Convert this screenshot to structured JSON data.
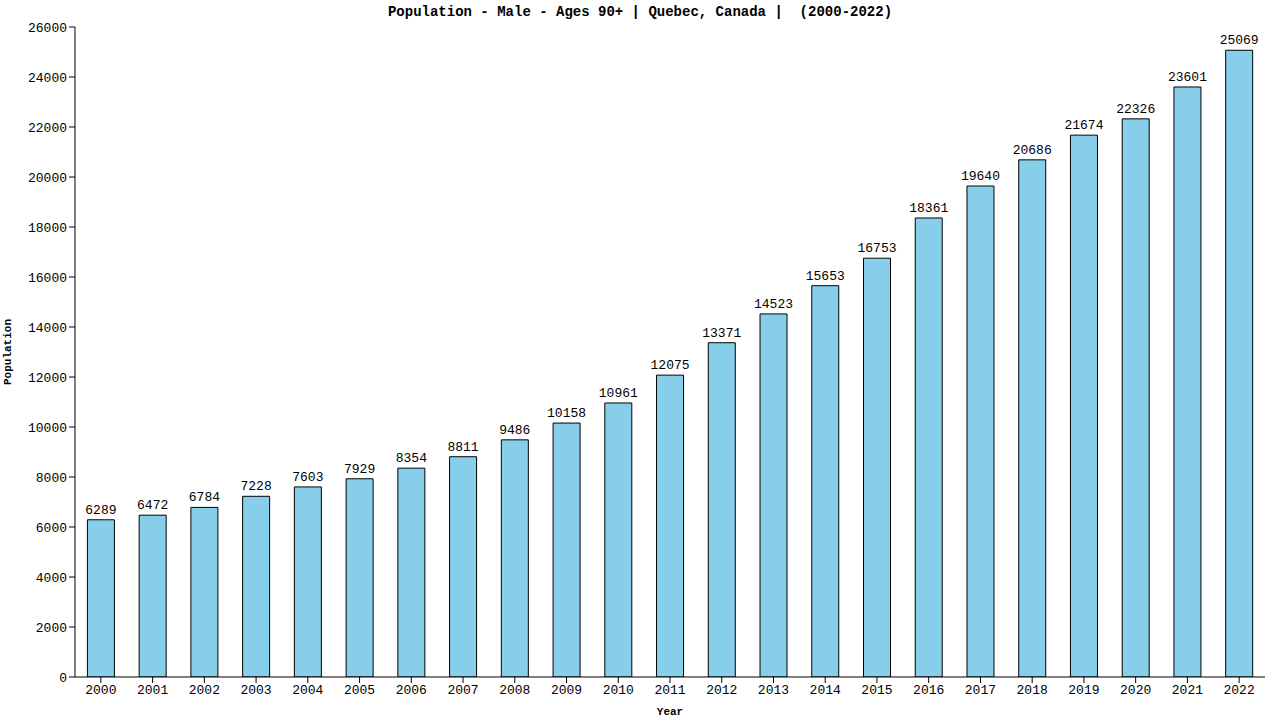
{
  "chart_data": {
    "type": "bar",
    "title": "Population - Male - Ages 90+ | Quebec, Canada |  (2000-2022)",
    "x_label": "Year",
    "y_label": "Population",
    "categories": [
      "2000",
      "2001",
      "2002",
      "2003",
      "2004",
      "2005",
      "2006",
      "2007",
      "2008",
      "2009",
      "2010",
      "2011",
      "2012",
      "2013",
      "2014",
      "2015",
      "2016",
      "2017",
      "2018",
      "2019",
      "2020",
      "2021",
      "2022"
    ],
    "values": [
      6289,
      6472,
      6784,
      7228,
      7603,
      7929,
      8354,
      8811,
      9486,
      10158,
      10961,
      12075,
      13371,
      14523,
      15653,
      16753,
      18361,
      19640,
      20686,
      21674,
      22326,
      23601,
      25069
    ],
    "color": "#87ceeb",
    "ylim": [
      0,
      26000
    ],
    "yticks": [
      0,
      2000,
      4000,
      6000,
      8000,
      10000,
      12000,
      14000,
      16000,
      18000,
      20000,
      22000,
      24000,
      26000
    ],
    "grid": false,
    "data_labels": true
  }
}
